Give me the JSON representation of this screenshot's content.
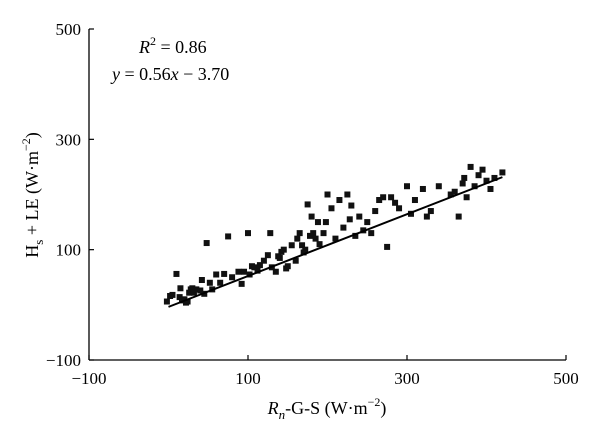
{
  "chart_data": {
    "type": "scatter",
    "xlabel_parts": [
      "R",
      "n",
      "-G-S (W·m",
      "−2",
      ")"
    ],
    "ylabel_parts": [
      "H",
      "s",
      " + LE (W·m",
      "−2",
      ")"
    ],
    "xlim": [
      -100,
      500
    ],
    "ylim": [
      -100,
      500
    ],
    "xticks": [
      -100,
      100,
      300,
      500
    ],
    "yticks": [
      -100,
      100,
      300,
      500
    ],
    "xtick_labels": [
      "−100",
      "100",
      "300",
      "500"
    ],
    "ytick_labels": [
      "−100",
      "100",
      "300",
      "500"
    ],
    "grid": false,
    "annotations": {
      "r2_parts": [
        "R",
        "2",
        " = 0.86"
      ],
      "eq_parts": [
        "y",
        " = 0.56",
        "x",
        " − 3.70"
      ]
    },
    "fit": {
      "slope": 0.56,
      "intercept": -3.7,
      "x_range": [
        0,
        420
      ]
    },
    "points": {
      "x": [
        -2,
        2,
        5,
        10,
        14,
        15,
        17,
        20,
        22,
        24,
        26,
        28,
        30,
        32,
        35,
        40,
        42,
        45,
        48,
        52,
        55,
        60,
        65,
        70,
        75,
        80,
        88,
        92,
        95,
        100,
        102,
        105,
        108,
        112,
        115,
        120,
        125,
        128,
        130,
        135,
        138,
        140,
        142,
        145,
        148,
        150,
        155,
        160,
        162,
        165,
        168,
        170,
        172,
        175,
        178,
        180,
        182,
        185,
        188,
        190,
        195,
        198,
        200,
        205,
        210,
        215,
        220,
        225,
        228,
        230,
        235,
        240,
        245,
        250,
        255,
        260,
        265,
        270,
        275,
        280,
        285,
        290,
        300,
        305,
        310,
        320,
        325,
        330,
        340,
        355,
        360,
        365,
        370,
        372,
        375,
        380,
        385,
        390,
        395,
        400,
        405,
        410,
        420
      ],
      "y": [
        6,
        16,
        18,
        56,
        14,
        30,
        8,
        10,
        4,
        6,
        22,
        28,
        30,
        22,
        28,
        26,
        45,
        20,
        112,
        40,
        28,
        55,
        40,
        56,
        124,
        50,
        60,
        38,
        60,
        130,
        55,
        70,
        68,
        62,
        72,
        80,
        90,
        130,
        68,
        60,
        88,
        85,
        96,
        100,
        66,
        70,
        108,
        80,
        120,
        130,
        108,
        95,
        100,
        182,
        125,
        160,
        130,
        120,
        150,
        110,
        130,
        150,
        200,
        175,
        120,
        190,
        140,
        200,
        155,
        180,
        125,
        160,
        135,
        150,
        130,
        170,
        190,
        195,
        105,
        195,
        185,
        175,
        215,
        165,
        190,
        210,
        160,
        170,
        215,
        200,
        205,
        160,
        220,
        230,
        195,
        250,
        215,
        235,
        245,
        225,
        210,
        230,
        240
      ]
    }
  }
}
